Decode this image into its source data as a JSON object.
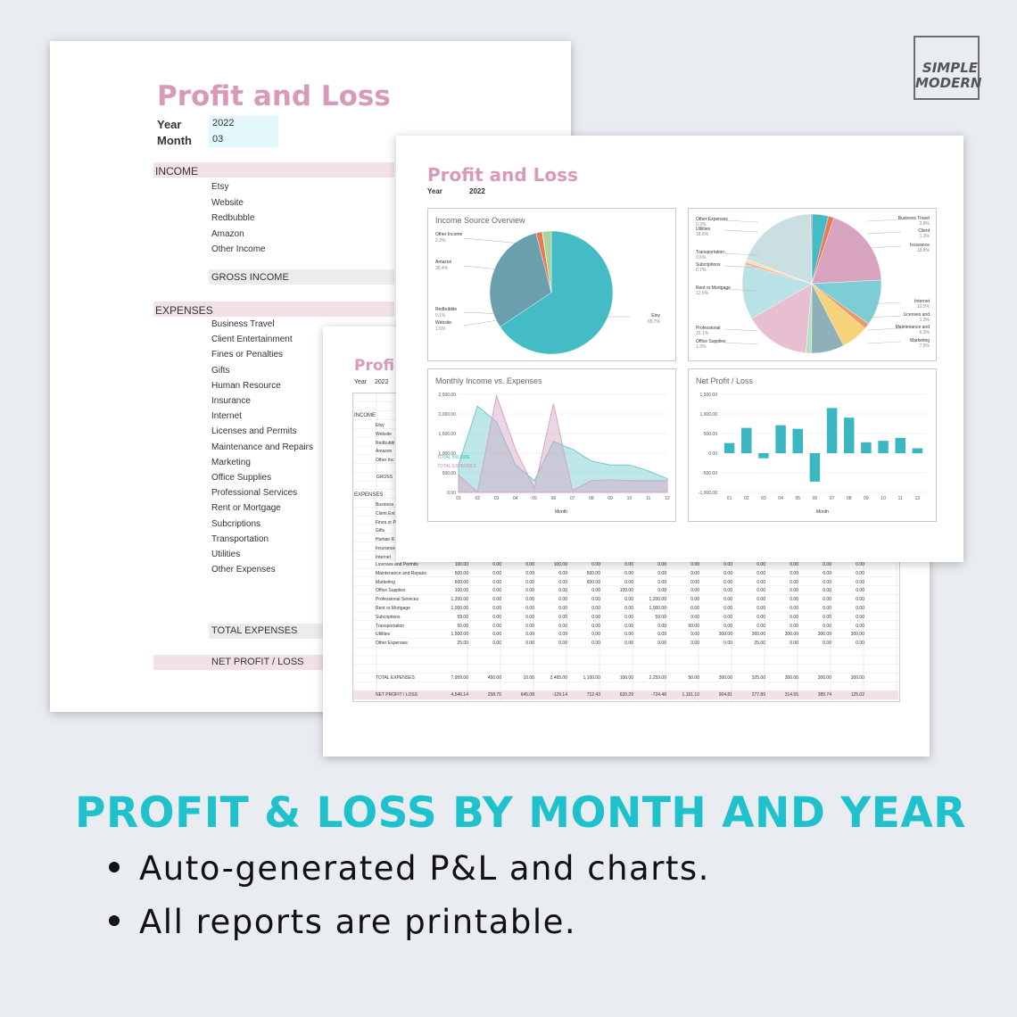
{
  "brand": {
    "logo_line1": "SIMPLE",
    "logo_line2": "MODERN"
  },
  "back_sheet": {
    "title": "Profit and Loss",
    "year_label": "Year",
    "year_value": "2022",
    "month_label": "Month",
    "month_value": "03",
    "income_header": "INCOME",
    "income_items": [
      "Etsy",
      "Website",
      "Redbubble",
      "Amazon",
      "Other Income"
    ],
    "gross_income": "GROSS INCOME",
    "expenses_header": "EXPENSES",
    "expense_items": [
      "Business Travel",
      "Client Entertainment",
      "Fines or Penalties",
      "Gifts",
      "Human Resource",
      "Insurance",
      "Internet",
      "Licenses and Permits",
      "Maintenance and Repairs",
      "Marketing",
      "Office Supplies",
      "Professional Services",
      "Rent or Mortgage",
      "Subcriptions",
      "Transportation",
      "Utilities",
      "Other Expenses"
    ],
    "total_expenses": "TOTAL EXPENSES",
    "net_profit": "NET PROFIT / LOSS"
  },
  "middle_sheet": {
    "title": "Profi",
    "year_label": "Year",
    "year_value": "2022",
    "income_header": "INCOME",
    "income_items": [
      "Etsy",
      "Website",
      "Redbubbl",
      "Amazon",
      "Other Inc"
    ],
    "gross": "GROSS",
    "expenses_header": "EXPENSES",
    "expense_items_upper": [
      "Business",
      "Client Ent",
      "Fines or P",
      "Gifts",
      "Human R",
      "Insurance",
      "Internet"
    ],
    "table_rows": [
      {
        "label": "Licenses and Permits",
        "values": [
          "100.00",
          "0.00",
          "0.00",
          "100.00",
          "0.00",
          "0.00",
          "0.00",
          "0.00",
          "0.00",
          "0.00",
          "0.00",
          "0.00",
          "0.00"
        ]
      },
      {
        "label": "Maintenance and Repairs",
        "values": [
          "500.00",
          "0.00",
          "0.00",
          "0.00",
          "500.00",
          "0.00",
          "0.00",
          "0.00",
          "0.00",
          "0.00",
          "0.00",
          "0.00",
          "0.00"
        ]
      },
      {
        "label": "Marketing",
        "values": [
          "600.00",
          "0.00",
          "0.00",
          "0.00",
          "600.00",
          "0.00",
          "0.00",
          "0.00",
          "0.00",
          "0.00",
          "0.00",
          "0.00",
          "0.00"
        ]
      },
      {
        "label": "Office Supplies",
        "values": [
          "100.00",
          "0.00",
          "0.00",
          "0.00",
          "0.00",
          "100.00",
          "0.00",
          "0.00",
          "0.00",
          "0.00",
          "0.00",
          "0.00",
          "0.00"
        ]
      },
      {
        "label": "Professional Services",
        "values": [
          "1,200.00",
          "0.00",
          "0.00",
          "0.00",
          "0.00",
          "0.00",
          "1,200.00",
          "0.00",
          "0.00",
          "0.00",
          "0.00",
          "0.00",
          "0.00"
        ]
      },
      {
        "label": "Rent or Mortgage",
        "values": [
          "1,000.00",
          "0.00",
          "0.00",
          "0.00",
          "0.00",
          "0.00",
          "1,000.00",
          "0.00",
          "0.00",
          "0.00",
          "0.00",
          "0.00",
          "0.00"
        ]
      },
      {
        "label": "Subcriptions",
        "values": [
          "59.00",
          "0.00",
          "0.00",
          "0.00",
          "0.00",
          "0.00",
          "59.00",
          "0.00",
          "0.00",
          "0.00",
          "0.00",
          "0.00",
          "0.00"
        ]
      },
      {
        "label": "Transportation",
        "values": [
          "50.00",
          "0.00",
          "0.00",
          "0.00",
          "0.00",
          "0.00",
          "0.00",
          "50.00",
          "0.00",
          "0.00",
          "0.00",
          "0.00",
          "0.00"
        ]
      },
      {
        "label": "Utilities",
        "values": [
          "1,500.00",
          "0.00",
          "0.00",
          "0.00",
          "0.00",
          "0.00",
          "0.00",
          "0.00",
          "300.00",
          "300.00",
          "300.00",
          "300.00",
          "300.00"
        ]
      },
      {
        "label": "Other Expenses",
        "values": [
          "25.00",
          "0.00",
          "0.00",
          "0.00",
          "0.00",
          "0.00",
          "0.00",
          "0.00",
          "0.00",
          "25.00",
          "0.00",
          "0.00",
          "0.00"
        ]
      }
    ],
    "total_row": {
      "label": "TOTAL EXPENSES",
      "values": [
        "7,959.00",
        "450.00",
        "10.00",
        "2,465.00",
        "1,100.00",
        "100.00",
        "2,259.00",
        "50.00",
        "300.00",
        "325.00",
        "300.00",
        "300.00",
        "300.00"
      ]
    },
    "net_row": {
      "label": "NET PROFIT / LOSS",
      "values": [
        "4,546.14",
        "258.75",
        "645.08",
        "-129.14",
        "712.43",
        "620.29",
        "-724.48",
        "1,151.10",
        "904.81",
        "277.89",
        "314.65",
        "389.74",
        "125.02"
      ]
    }
  },
  "front_sheet": {
    "title": "Profit and Loss",
    "year_label": "Year",
    "year_value": "2022",
    "pie1_title": "Income Source Overview",
    "pie1_labels": [
      {
        "name": "Other Income",
        "pct": "2.3%"
      },
      {
        "name": "Amazon",
        "pct": "30.4%"
      },
      {
        "name": "Redbubble",
        "pct": "0.1%"
      },
      {
        "name": "Website",
        "pct": "1.6%"
      },
      {
        "name": "Etsy",
        "pct": "65.7%"
      }
    ],
    "pie2_labels_left": [
      {
        "name": "Other Expenses",
        "pct": "0.3%"
      },
      {
        "name": "Utilities",
        "pct": "18.8%"
      },
      {
        "name": "Transportation",
        "pct": "0.6%"
      },
      {
        "name": "Subcriptions",
        "pct": "0.7%"
      },
      {
        "name": "Rent or Mortgage",
        "pct": "12.6%"
      },
      {
        "name": "Professional",
        "pct": "15.1%"
      },
      {
        "name": "Office Supplies",
        "pct": "1.3%"
      }
    ],
    "pie2_labels_right": [
      {
        "name": "Business Travel",
        "pct": "3.8%"
      },
      {
        "name": "Client",
        "pct": "1.3%"
      },
      {
        "name": "Insurance",
        "pct": "18.8%"
      },
      {
        "name": "Internet",
        "pct": "10.5%"
      },
      {
        "name": "Licenses and",
        "pct": "1.3%"
      },
      {
        "name": "Maintenance and",
        "pct": "6.3%"
      },
      {
        "name": "Marketing",
        "pct": "7.5%"
      }
    ],
    "area_title": "Monthly Income vs. Expenses",
    "area_xlabel": "Month",
    "area_legend_income": "TOTAL INCOME",
    "area_legend_expenses": "TOTAL EXPENSES",
    "bar_title": "Net Profit / Loss",
    "bar_xlabel": "Month"
  },
  "chart_data": [
    {
      "type": "pie",
      "title": "Income Source Overview",
      "categories": [
        "Etsy",
        "Amazon",
        "Website",
        "Redbubble",
        "Other Income"
      ],
      "values": [
        65.7,
        30.4,
        1.6,
        0.1,
        2.3
      ],
      "colors": [
        "#44bcc6",
        "#6aa0ad",
        "#e87a58",
        "#c07a9a",
        "#a9d3a0"
      ]
    },
    {
      "type": "pie",
      "title": "",
      "categories": [
        "Business Travel",
        "Client",
        "Insurance",
        "Internet",
        "Licenses and",
        "Maintenance and",
        "Marketing",
        "Office Supplies",
        "Professional",
        "Rent or Mortgage",
        "Subcriptions",
        "Transportation",
        "Utilities",
        "Other Expenses"
      ],
      "values": [
        3.8,
        1.3,
        18.8,
        10.5,
        1.3,
        6.3,
        7.5,
        1.3,
        15.1,
        12.6,
        0.7,
        0.6,
        18.8,
        0.3
      ],
      "colors": [
        "#44bcc6",
        "#e87a58",
        "#d8a3bf",
        "#7dcdd4",
        "#e89a6a",
        "#f6d27a",
        "#8fb0b8",
        "#b7e0c0",
        "#e7bfd1",
        "#b9e2e6",
        "#f4b59a",
        "#f7e0a8",
        "#c9dfe2",
        "#f0a0a0"
      ]
    },
    {
      "type": "area",
      "title": "Monthly Income vs. Expenses",
      "xlabel": "Month",
      "x": [
        "01",
        "02",
        "03",
        "04",
        "05",
        "06",
        "07",
        "08",
        "09",
        "10",
        "11",
        "12"
      ],
      "ylim": [
        0,
        2500
      ],
      "yticks": [
        "0.00",
        "500.00",
        "1,000.00",
        "1,500.00",
        "2,000.00",
        "2,500.00"
      ],
      "series": [
        {
          "name": "TOTAL INCOME",
          "values": [
            700,
            2200,
            1800,
            700,
            300,
            1300,
            1100,
            800,
            700,
            700,
            550,
            350
          ],
          "color": "#6ec9cf"
        },
        {
          "name": "TOTAL EXPENSES",
          "values": [
            450,
            10,
            2465,
            1100,
            100,
            2259,
            50,
            300,
            325,
            300,
            300,
            300
          ],
          "color": "#d7a5c0"
        }
      ]
    },
    {
      "type": "bar",
      "title": "Net Profit / Loss",
      "xlabel": "Month",
      "categories": [
        "01",
        "02",
        "03",
        "04",
        "05",
        "06",
        "07",
        "08",
        "09",
        "10",
        "11",
        "12"
      ],
      "values": [
        258.75,
        645.08,
        -129.14,
        712.43,
        620.29,
        -724.48,
        1151.1,
        904.81,
        277.89,
        314.65,
        389.74,
        125.02
      ],
      "ylim": [
        -1000,
        1500
      ],
      "yticks": [
        "-1,000.00",
        "-500.00",
        "0.00",
        "500.00",
        "1,000.00",
        "1,500.00"
      ],
      "color": "#3bb7c1"
    }
  ],
  "headline": "PROFIT & LOSS BY MONTH AND YEAR",
  "bullets": [
    "Auto-generated P&L and charts.",
    "All reports are printable."
  ]
}
